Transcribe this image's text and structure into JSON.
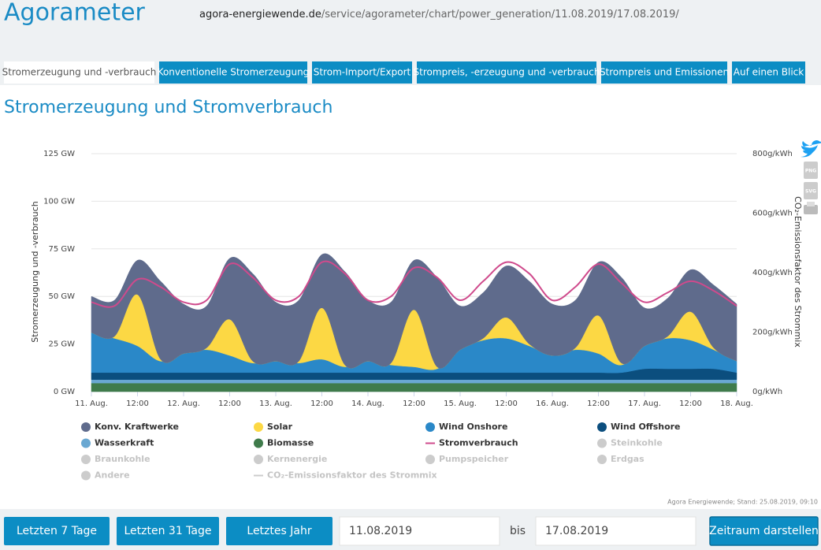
{
  "header": {
    "title": "Agorameter",
    "url_domain": "agora-energiewende.de",
    "url_path": "/service/agorameter/chart/power_generation/11.08.2019/17.08.2019/"
  },
  "tabs": [
    "Stromerzeugung und -verbrauch",
    "Konventionelle Stromerzeugung",
    "Strom-Import/Export",
    "Strompreis, -erzeugung und -verbrauch",
    "Strompreis und Emissionen",
    "Auf einen Blick"
  ],
  "export": [
    "PNG",
    "SVG"
  ],
  "chart_data": {
    "type": "stacked_area",
    "title": "Stromerzeugung und Stromverbrauch",
    "y_label": "Stromerzeugung und -verbrauch",
    "y2_label": "CO₂-Emissionsfaktor des Strommix",
    "x": [
      0,
      6,
      12,
      18,
      24,
      30,
      36,
      42,
      48,
      54,
      60,
      66,
      72,
      78,
      84,
      90,
      96,
      102,
      108,
      114,
      120,
      126,
      132,
      138,
      144,
      150,
      156,
      162,
      168
    ],
    "xlim": [
      0,
      168
    ],
    "xticks": [
      {
        "value": 0,
        "label": "11. Aug."
      },
      {
        "value": 12,
        "label": "12:00"
      },
      {
        "value": 24,
        "label": "12. Aug."
      },
      {
        "value": 36,
        "label": "12:00"
      },
      {
        "value": 48,
        "label": "13. Aug."
      },
      {
        "value": 60,
        "label": "12:00"
      },
      {
        "value": 72,
        "label": "14. Aug."
      },
      {
        "value": 84,
        "label": "12:00"
      },
      {
        "value": 96,
        "label": "15. Aug."
      },
      {
        "value": 108,
        "label": "12:00"
      },
      {
        "value": 120,
        "label": "16. Aug."
      },
      {
        "value": 132,
        "label": "12:00"
      },
      {
        "value": 144,
        "label": "17. Aug."
      },
      {
        "value": 156,
        "label": "12:00"
      },
      {
        "value": 168,
        "label": "18. Aug."
      }
    ],
    "ylim": [
      0,
      125
    ],
    "yticks": [
      {
        "value": 0,
        "label": "0 GW"
      },
      {
        "value": 25,
        "label": "25 GW"
      },
      {
        "value": 50,
        "label": "50 GW"
      },
      {
        "value": 75,
        "label": "75 GW"
      },
      {
        "value": 100,
        "label": "100 GW"
      },
      {
        "value": 125,
        "label": "125 GW"
      }
    ],
    "y2lim": [
      0,
      800
    ],
    "y2ticks": [
      {
        "value": 0,
        "label": "0g/kWh"
      },
      {
        "value": 200,
        "label": "200g/kWh"
      },
      {
        "value": 400,
        "label": "400g/kWh"
      },
      {
        "value": 600,
        "label": "600g/kWh"
      },
      {
        "value": 800,
        "label": "800g/kWh"
      }
    ],
    "grid": true,
    "series": [
      {
        "name": "Konv. Kraftwerke",
        "kind": "area",
        "color": "#5f6b8c",
        "values": [
          19,
          19,
          18,
          41,
          26,
          22,
          32,
          46,
          31,
          32,
          28,
          49,
          32,
          32,
          26,
          47,
          23,
          24,
          27,
          33,
          27,
          25,
          28,
          45,
          20,
          20,
          22,
          33,
          30
        ]
      },
      {
        "name": "Solar",
        "kind": "area",
        "color": "#fcd844",
        "values": [
          0,
          1,
          27,
          1,
          0,
          1,
          19,
          1,
          0,
          1,
          27,
          1,
          0,
          1,
          30,
          1,
          0,
          1,
          11,
          1,
          0,
          1,
          20,
          1,
          0,
          1,
          15,
          1,
          0
        ]
      },
      {
        "name": "Wind Onshore",
        "kind": "area",
        "color": "#2a88c8",
        "values": [
          21,
          18,
          14,
          6,
          10,
          12,
          9,
          5,
          6,
          5,
          7,
          3,
          6,
          4,
          3,
          2,
          12,
          17,
          18,
          14,
          9,
          12,
          10,
          4,
          12,
          16,
          15,
          10,
          6
        ]
      },
      {
        "name": "Wind Offshore",
        "kind": "area",
        "color": "#0b4e7e",
        "values": [
          3.7,
          3.7,
          3.7,
          3.7,
          3.7,
          3.7,
          3.7,
          3.7,
          3.7,
          3.7,
          3.7,
          3.7,
          3.7,
          3.7,
          3.7,
          3.7,
          3.7,
          3.7,
          3.7,
          3.7,
          3.7,
          3.7,
          3.7,
          3.7,
          5.7,
          5.7,
          5.7,
          5.7,
          3.7
        ]
      },
      {
        "name": "Wasserkraft",
        "kind": "area",
        "color": "#6aa8d2",
        "values": [
          1.8,
          1.8,
          1.8,
          1.8,
          1.8,
          1.8,
          1.8,
          1.8,
          1.8,
          1.8,
          1.8,
          1.8,
          1.8,
          1.8,
          1.8,
          1.8,
          1.8,
          1.8,
          1.8,
          1.8,
          1.8,
          1.8,
          1.8,
          1.8,
          1.8,
          1.8,
          1.8,
          1.8,
          1.8
        ]
      },
      {
        "name": "Biomasse",
        "kind": "area",
        "color": "#3f7b4b",
        "values": [
          4.5,
          4.5,
          4.5,
          4.5,
          4.5,
          4.5,
          4.5,
          4.5,
          4.5,
          4.5,
          4.5,
          4.5,
          4.5,
          4.5,
          4.5,
          4.5,
          4.5,
          4.5,
          4.5,
          4.5,
          4.5,
          4.5,
          4.5,
          4.5,
          4.5,
          4.5,
          4.5,
          4.5,
          4.5
        ]
      },
      {
        "name": "Stromverbrauch",
        "kind": "line",
        "color": "#cf4a8c",
        "values": [
          47,
          45,
          59,
          55,
          47,
          48,
          67,
          60,
          48,
          50,
          68,
          62,
          48,
          50,
          65,
          60,
          48,
          58,
          68,
          62,
          48,
          55,
          67,
          57,
          47,
          52,
          58,
          53,
          45
        ]
      },
      {
        "name": "Steinkohle",
        "kind": "area",
        "hidden": true
      },
      {
        "name": "Braunkohle",
        "kind": "area",
        "hidden": true
      },
      {
        "name": "Kernenergie",
        "kind": "area",
        "hidden": true
      },
      {
        "name": "Pumpspeicher",
        "kind": "area",
        "hidden": true
      },
      {
        "name": "Erdgas",
        "kind": "area",
        "hidden": true
      },
      {
        "name": "Andere",
        "kind": "area",
        "hidden": true
      },
      {
        "name": "CO₂-Emissionsfaktor des Strommix",
        "kind": "line",
        "axis": "y2",
        "hidden": true
      }
    ],
    "credit": "Agora Energiewende; Stand: 25.08.2019, 09:10"
  },
  "controls": {
    "buttons": [
      "Letzten 7 Tage",
      "Letzten 31 Tage",
      "Letztes Jahr"
    ],
    "from": "11.08.2019",
    "to_label": "bis",
    "to": "17.08.2019",
    "submit": "Zeitraum darstellen"
  }
}
